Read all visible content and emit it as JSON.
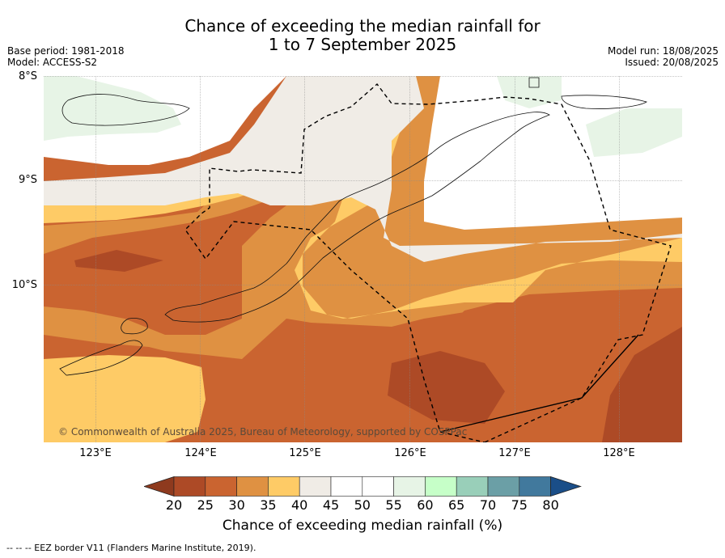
{
  "title": {
    "line1": "Chance of exceeding the median rainfall for",
    "line2": "1 to 7 September 2025"
  },
  "meta_left": {
    "base_period": "Base period: 1981-2018",
    "model": "Model: ACCESS-S2"
  },
  "meta_right": {
    "model_run": "Model run: 18/08/2025",
    "issued": "Issued: 20/08/2025"
  },
  "axes": {
    "lat_labels": [
      "8°S",
      "9°S",
      "10°S"
    ],
    "lon_labels": [
      "123°E",
      "124°E",
      "125°E",
      "126°E",
      "127°E",
      "128°E"
    ]
  },
  "copyright": "© Commonwealth of Australia 2025, Bureau of Meteorology, supported by COSPPac",
  "colorbar": {
    "ticks": [
      "20",
      "25",
      "30",
      "35",
      "40",
      "45",
      "50",
      "55",
      "60",
      "65",
      "70",
      "75",
      "80"
    ],
    "colors": [
      "#8e3a1e",
      "#ad4a26",
      "#ca6430",
      "#df9142",
      "#fecb66",
      "#f0ece6",
      "#ffffff",
      "#ffffff",
      "#e7f4e6",
      "#c6ffc8",
      "#99cfb9",
      "#6b9fa6",
      "#41799d",
      "#1a4e88"
    ],
    "label": "Chance of exceeding median rainfall (%)"
  },
  "legend_footnote": "-- --  -- EEZ border V11 (Flanders Marine Institute, 2019)."
}
